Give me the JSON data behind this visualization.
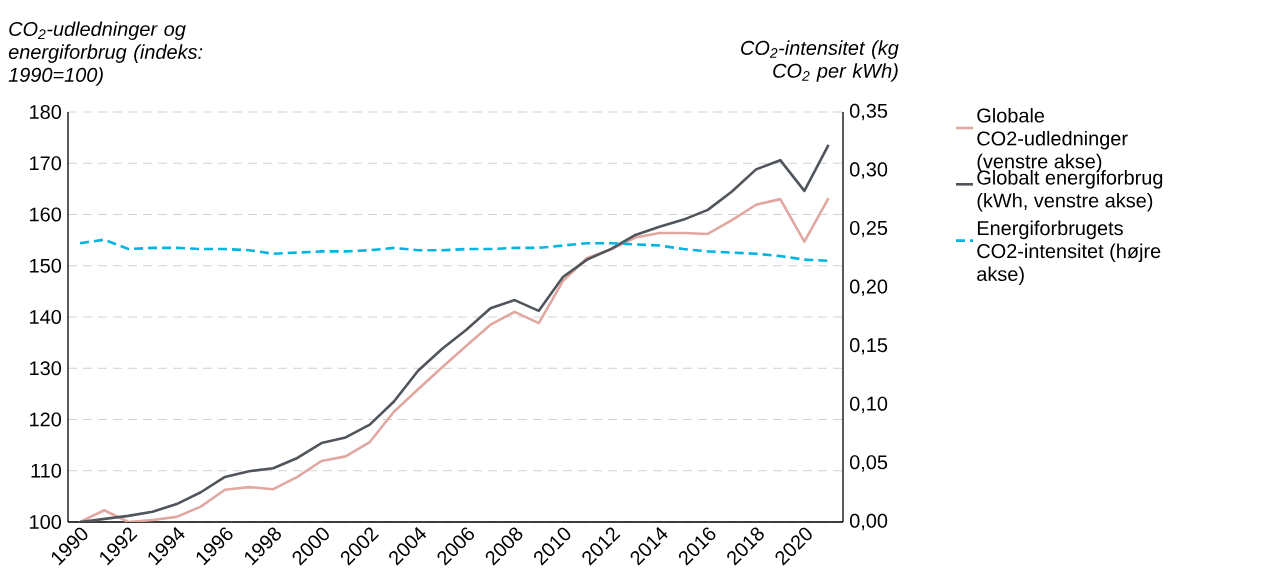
{
  "chart_data": {
    "type": "line",
    "ylabel": "CO$_{2}$-udledninger og energiforbrug (indeks: 1990=100)",
    "y2label": "CO$_{2}$-intensitet (kg CO$_{2}$ per kWh)",
    "x": [
      1990,
      1991,
      1992,
      1993,
      1994,
      1995,
      1996,
      1997,
      1998,
      1999,
      2000,
      2001,
      2002,
      2003,
      2004,
      2005,
      2006,
      2007,
      2008,
      2009,
      2010,
      2011,
      2012,
      2013,
      2014,
      2015,
      2016,
      2017,
      2018,
      2019,
      2020,
      2021
    ],
    "series": [
      {
        "name": "Globale CO2-udledninger (venstre akse)",
        "color": "#e0a8a0",
        "line_style": "solid",
        "values": [
          100,
          102.3,
          100,
          100.4,
          101.0,
          103.0,
          106.3,
          106.8,
          106.4,
          108.8,
          111.9,
          112.8,
          115.6,
          121.5,
          125.9,
          130.2,
          134.4,
          138.5,
          141.0,
          138.8,
          147.0,
          151.5,
          153.2,
          155.5,
          156.4,
          156.4,
          156.2,
          158.9,
          161.9,
          163.0,
          154.7,
          163.2
        ]
      },
      {
        "name": "Globalt energiforbrug (kWh, venstre akse)",
        "color": "#50555c",
        "line_style": "solid",
        "values": [
          100,
          100.6,
          101.2,
          102.0,
          103.5,
          105.8,
          108.8,
          109.9,
          110.5,
          112.5,
          115.4,
          116.5,
          119.0,
          123.5,
          129.5,
          133.8,
          137.5,
          141.7,
          143.3,
          141.2,
          147.8,
          151.2,
          153.3,
          156.0,
          157.6,
          159.0,
          160.9,
          164.5,
          168.8,
          170.6,
          164.6,
          173.6
        ]
      },
      {
        "name": "Energiforbrugets CO2-intensitet (højre akse)",
        "color": "#00b5e2",
        "line_style": "dashed",
        "axis": "y2",
        "values": [
          0.238,
          0.241,
          0.233,
          0.234,
          0.234,
          0.233,
          0.233,
          0.232,
          0.229,
          0.23,
          0.231,
          0.231,
          0.232,
          0.234,
          0.232,
          0.232,
          0.233,
          0.233,
          0.234,
          0.234,
          0.236,
          0.238,
          0.238,
          0.237,
          0.236,
          0.233,
          0.231,
          0.23,
          0.229,
          0.227,
          0.224,
          0.223
        ]
      }
    ],
    "xlim": [
      1989.5,
      2021.6
    ],
    "xticks": [
      1990,
      1992,
      1994,
      1996,
      1998,
      2000,
      2002,
      2004,
      2006,
      2008,
      2010,
      2012,
      2014,
      2016,
      2018,
      2020
    ],
    "ylim": [
      100,
      180
    ],
    "yticks": [
      100,
      110,
      120,
      130,
      140,
      150,
      160,
      170,
      180
    ],
    "y2lim": [
      0,
      0.35
    ],
    "y2ticks": [
      {
        "value": 0,
        "label": "0,00"
      },
      {
        "value": 0.05,
        "label": "0,05"
      },
      {
        "value": 0.1,
        "label": "0,10"
      },
      {
        "value": 0.15,
        "label": "0,15"
      },
      {
        "value": 0.2,
        "label": "0,20"
      },
      {
        "value": 0.25,
        "label": "0,25"
      },
      {
        "value": 0.3,
        "label": "0,30"
      },
      {
        "value": 0.35,
        "label": "0,35"
      }
    ],
    "grid": "y",
    "legend": "right",
    "marker": "none"
  }
}
